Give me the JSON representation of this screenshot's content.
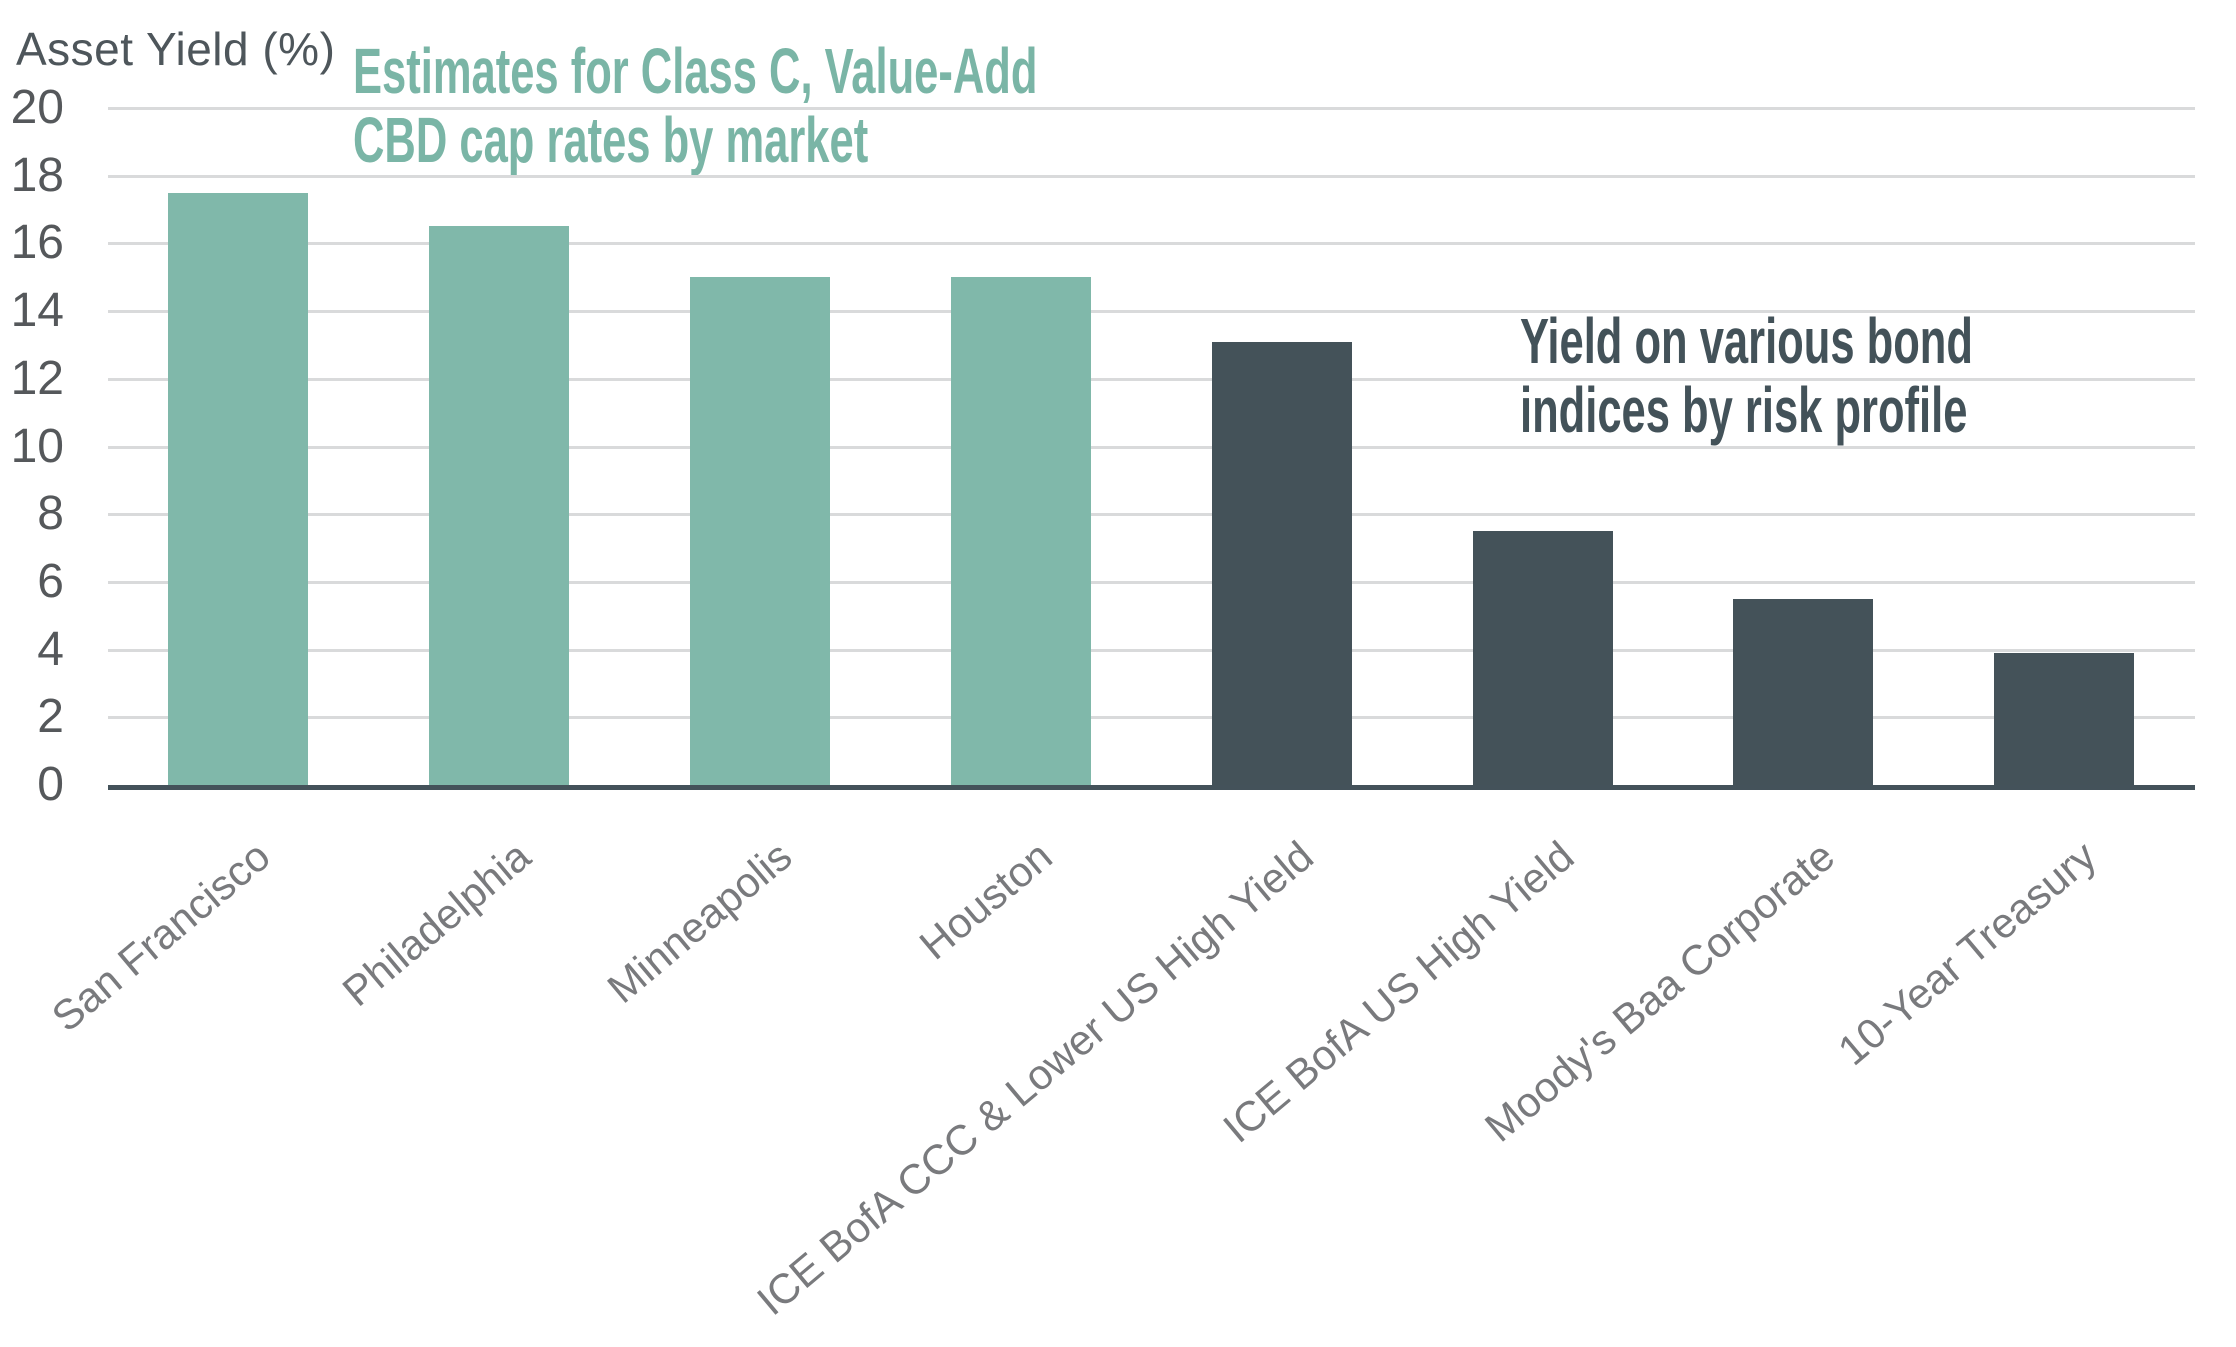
{
  "chart_data": {
    "type": "bar",
    "ylabel": "Asset Yield (%)",
    "ylim": [
      0,
      20
    ],
    "ytick_step": 2,
    "grid": true,
    "legend": "none",
    "categories": [
      "San Francisco",
      "Philadelphia",
      "Minneapolis",
      "Houston",
      "ICE BofA CCC & Lower US High Yield",
      "ICE BofA US High Yield",
      "Moody's Baa Corporate",
      "10-Year Treasury"
    ],
    "values": [
      17.5,
      16.5,
      15.0,
      15.0,
      13.1,
      7.5,
      5.5,
      3.9
    ],
    "bar_groups": [
      "cap-rate",
      "cap-rate",
      "cap-rate",
      "cap-rate",
      "bond",
      "bond",
      "bond",
      "bond"
    ],
    "group_colors": {
      "cap-rate": "#80B8AA",
      "bond": "#445259"
    },
    "annotations": [
      {
        "id": "cap-rates-title",
        "lines": [
          "Estimates for Class C, Value-Add",
          "CBD cap rates by market"
        ],
        "color": "#7AB5A6"
      },
      {
        "id": "bond-indices-title",
        "lines": [
          "Yield on various bond",
          "indices by risk profile"
        ],
        "color": "#435259"
      }
    ],
    "axis_colors": {
      "y_tick_label": "#55585B",
      "x_tick_label": "#797A7D",
      "axis_title": "#4E565B",
      "gridline": "#D9DADB",
      "axis_line": "#44525A"
    }
  }
}
